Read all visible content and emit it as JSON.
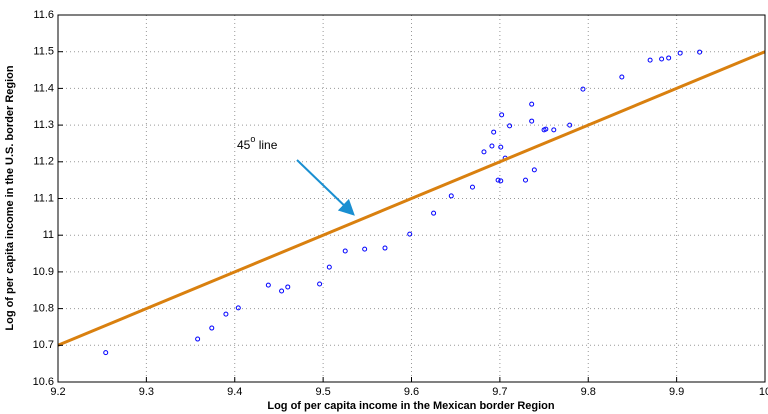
{
  "chart_data": {
    "type": "scatter",
    "xlabel": "Log of per capita income in the Mexican border Region",
    "ylabel": "Log of per capita income in the U.S. border Region",
    "annotation": "45",
    "annotation_sup": "o",
    "annotation_suffix": " line",
    "xlim": [
      9.2,
      10
    ],
    "ylim": [
      10.6,
      11.6
    ],
    "xticks": [
      9.2,
      9.3,
      9.4,
      9.5,
      9.6,
      9.7,
      9.8,
      9.9,
      10
    ],
    "yticks": [
      10.6,
      10.7,
      10.8,
      10.9,
      11,
      11.1,
      11.2,
      11.3,
      11.4,
      11.5,
      11.6
    ],
    "grid": true,
    "series": [
      {
        "type": "scatter",
        "color": "#0000ff",
        "x": [
          9.254,
          9.358,
          9.374,
          9.39,
          9.404,
          9.438,
          9.453,
          9.46,
          9.496,
          9.507,
          9.525,
          9.547,
          9.57,
          9.598,
          9.625,
          9.645,
          9.669,
          9.682,
          9.691,
          9.693,
          9.698,
          9.701,
          9.702,
          9.701,
          9.706,
          9.711,
          9.729,
          9.736,
          9.736,
          9.739,
          9.75,
          9.752,
          9.761,
          9.779,
          9.794,
          9.838,
          9.87,
          9.883,
          9.891,
          9.904,
          9.926
        ],
        "values": [
          10.68,
          10.717,
          10.747,
          10.785,
          10.802,
          10.864,
          10.848,
          10.859,
          10.867,
          10.913,
          10.957,
          10.962,
          10.965,
          11.003,
          11.06,
          11.107,
          11.131,
          11.227,
          11.243,
          11.281,
          11.15,
          11.148,
          11.328,
          11.24,
          11.21,
          11.298,
          11.15,
          11.357,
          11.311,
          11.178,
          11.287,
          11.289,
          11.287,
          11.3,
          11.398,
          11.431,
          11.477,
          11.48,
          11.483,
          11.496,
          11.499
        ]
      },
      {
        "type": "line",
        "color": "#d9800f",
        "x": [
          9.2,
          10
        ],
        "values": [
          10.7,
          11.5
        ]
      }
    ]
  }
}
